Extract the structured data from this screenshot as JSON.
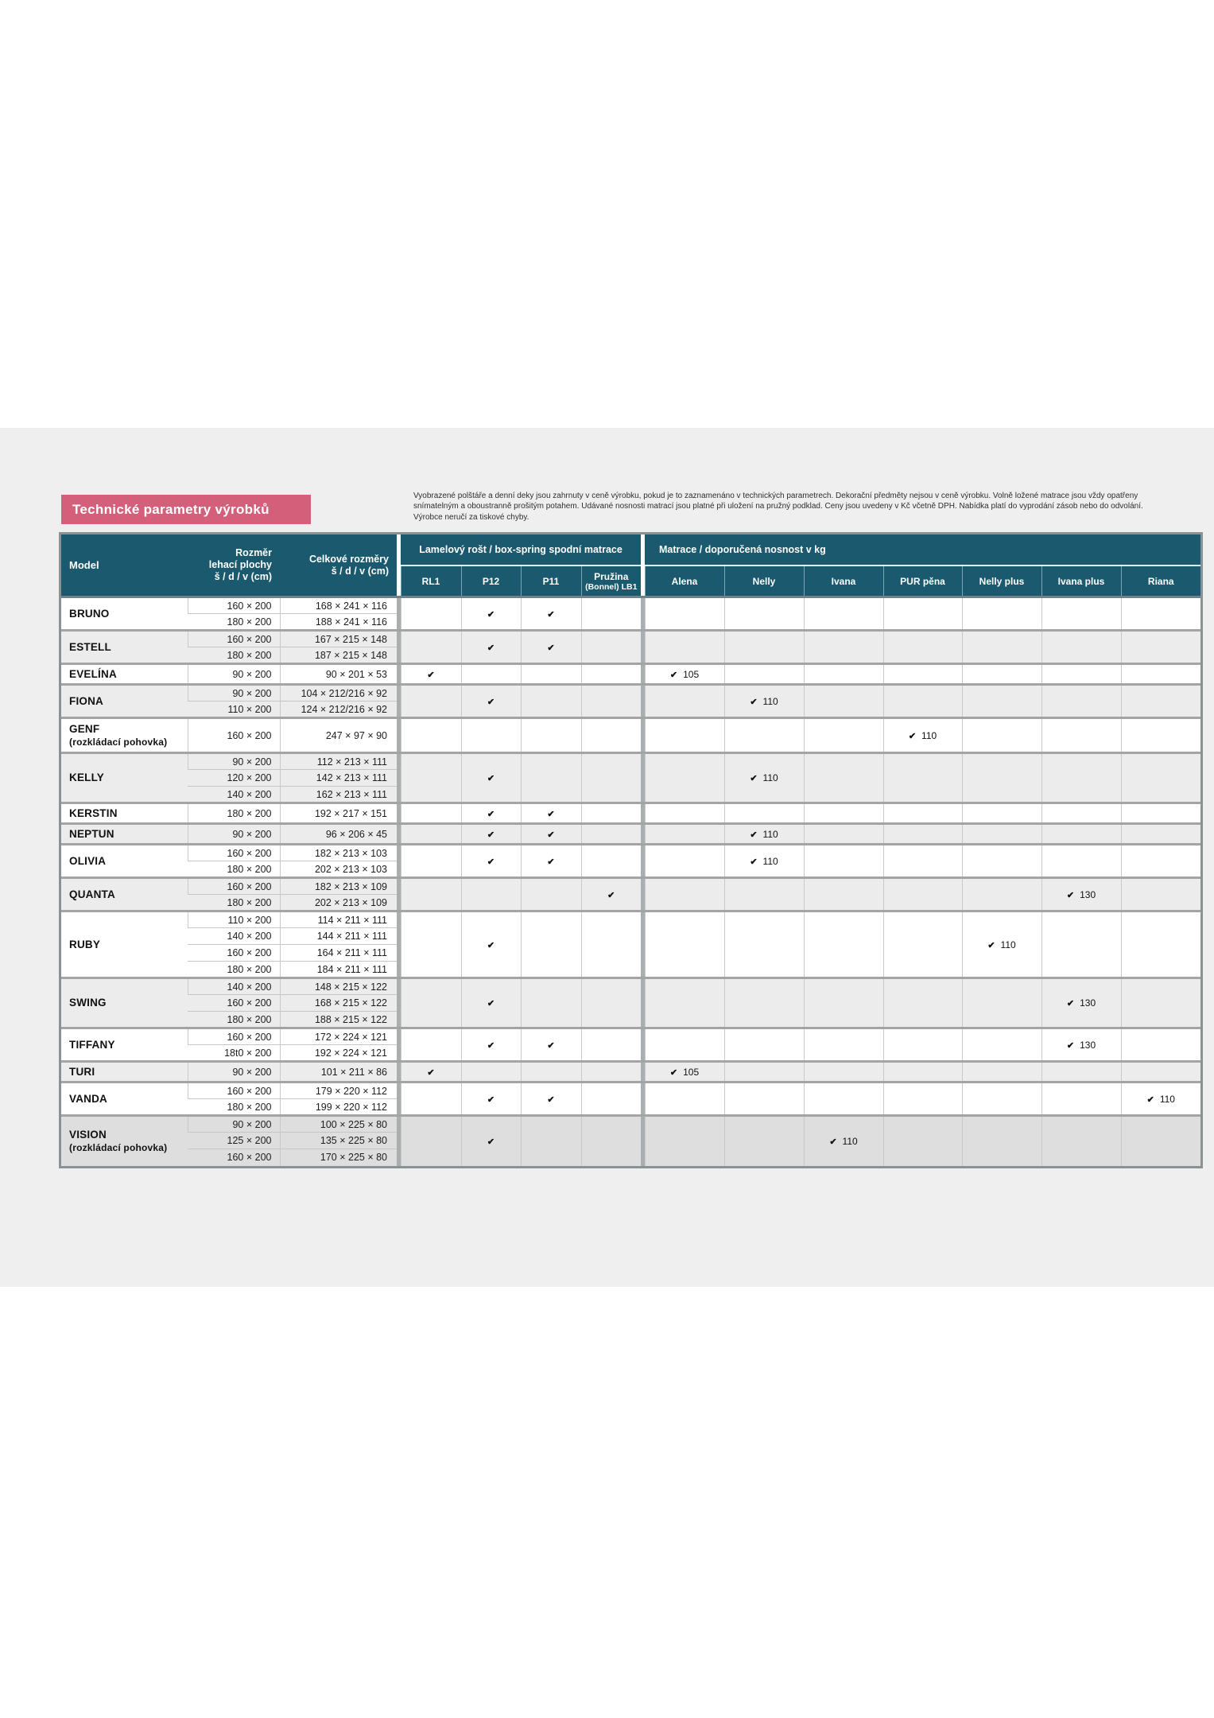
{
  "banner": {
    "title": "Technické parametry výrobků"
  },
  "disclaimer": {
    "text": "Vyobrazené polštáře a denní deky jsou zahrnuty v ceně výrobku, pokud je to zaznamenáno v technických parametrech. Dekorační předměty nejsou v ceně výrobku. Volně ložené matrace jsou vždy opatřeny snímatelným a oboustranně prošitým potahem. Udávané nosnosti matrací jsou platné při uložení na pružný podklad. Ceny jsou uvedeny v Kč včetně DPH. Nabídka platí do vyprodání zásob nebo do odvolání.",
    "footnote": "Výrobce neručí za tiskové chyby."
  },
  "colors": {
    "header_teal": "#1b5a6e",
    "banner_pink": "#d45f7a",
    "row_gray": "#ececec",
    "row_dark": "#dedede"
  },
  "table": {
    "check_glyph": "✔",
    "columns": {
      "model": "Model",
      "sleeping": "Rozměr\nlehací plochy\nš / d / v (cm)",
      "overall": "Celkové rozměry\nš / d / v (cm)",
      "group_base": "Lamelový rošt / box-spring spodní matrace",
      "base_cols": [
        "RL1",
        "P12",
        "P11",
        "Pružina\n(Bonnel) LB1"
      ],
      "group_mattress": "Matrace / doporučená nosnost v kg",
      "mattress_cols": [
        "Alena",
        "Nelly",
        "Ivana",
        "PUR pěna",
        "Nelly plus",
        "Ivana plus",
        "Riana"
      ]
    },
    "rows": [
      {
        "model": "BRUNO",
        "note": "",
        "shade": "light",
        "sizes": [
          [
            "160 × 200",
            "168 × 241 × 116"
          ],
          [
            "180 × 200",
            "188 × 241 × 116"
          ]
        ],
        "base": [
          0,
          1,
          1,
          0
        ],
        "mattress": null
      },
      {
        "model": "ESTELL",
        "note": "",
        "shade": "gray",
        "sizes": [
          [
            "160 × 200",
            "167 × 215 × 148"
          ],
          [
            "180 × 200",
            "187 × 215 × 148"
          ]
        ],
        "base": [
          0,
          1,
          1,
          0
        ],
        "mattress": null
      },
      {
        "model": "EVELÍNA",
        "note": "",
        "shade": "light",
        "sizes": [
          [
            "90 × 200",
            "90 × 201 × 53"
          ]
        ],
        "base": [
          1,
          0,
          0,
          0
        ],
        "mattress": {
          "col": 0,
          "value": "105"
        }
      },
      {
        "model": "FIONA",
        "note": "",
        "shade": "gray",
        "sizes": [
          [
            "90 × 200",
            "104 × 212/216 × 92"
          ],
          [
            "110 × 200",
            "124 × 212/216 × 92"
          ]
        ],
        "base": [
          0,
          1,
          0,
          0
        ],
        "mattress": {
          "col": 1,
          "value": "110"
        }
      },
      {
        "model": "GENF",
        "note": "(rozkládací pohovka)",
        "shade": "light",
        "tall": true,
        "sizes": [
          [
            "160 × 200",
            "247 × 97 × 90"
          ]
        ],
        "base": [
          0,
          0,
          0,
          0
        ],
        "mattress": {
          "col": 3,
          "value": "110"
        }
      },
      {
        "model": "KELLY",
        "note": "",
        "shade": "gray",
        "sizes": [
          [
            "90 × 200",
            "112 × 213 × 111"
          ],
          [
            "120 × 200",
            "142 × 213 × 111"
          ],
          [
            "140 × 200",
            "162 × 213 × 111"
          ]
        ],
        "base": [
          0,
          1,
          0,
          0
        ],
        "mattress": {
          "col": 1,
          "value": "110"
        }
      },
      {
        "model": "KERSTIN",
        "note": "",
        "shade": "light",
        "sizes": [
          [
            "180 × 200",
            "192 × 217 × 151"
          ]
        ],
        "base": [
          0,
          1,
          1,
          0
        ],
        "mattress": null
      },
      {
        "model": "NEPTUN",
        "note": "",
        "shade": "gray",
        "sizes": [
          [
            "90 × 200",
            "96 × 206 × 45"
          ]
        ],
        "base": [
          0,
          1,
          1,
          0
        ],
        "mattress": {
          "col": 1,
          "value": "110"
        }
      },
      {
        "model": "OLIVIA",
        "note": "",
        "shade": "light",
        "sizes": [
          [
            "160 × 200",
            "182 × 213 × 103"
          ],
          [
            "180 × 200",
            "202 × 213 × 103"
          ]
        ],
        "base": [
          0,
          1,
          1,
          0
        ],
        "mattress": {
          "col": 1,
          "value": "110"
        }
      },
      {
        "model": "QUANTA",
        "note": "",
        "shade": "gray",
        "sizes": [
          [
            "160 × 200",
            "182 × 213 × 109"
          ],
          [
            "180 × 200",
            "202 × 213 × 109"
          ]
        ],
        "base": [
          0,
          0,
          0,
          1
        ],
        "mattress": {
          "col": 5,
          "value": "130"
        }
      },
      {
        "model": "RUBY",
        "note": "",
        "shade": "light",
        "sizes": [
          [
            "110 × 200",
            "114 × 211 × 111"
          ],
          [
            "140 × 200",
            "144 × 211 × 111"
          ],
          [
            "160 × 200",
            "164 × 211 × 111"
          ],
          [
            "180 × 200",
            "184 × 211 × 111"
          ]
        ],
        "base": [
          0,
          1,
          0,
          0
        ],
        "mattress": {
          "col": 4,
          "value": "110"
        }
      },
      {
        "model": "SWING",
        "note": "",
        "shade": "gray",
        "sizes": [
          [
            "140 × 200",
            "148 × 215 × 122"
          ],
          [
            "160 × 200",
            "168 × 215 × 122"
          ],
          [
            "180 × 200",
            "188 × 215 × 122"
          ]
        ],
        "base": [
          0,
          1,
          0,
          0
        ],
        "mattress": {
          "col": 5,
          "value": "130"
        }
      },
      {
        "model": "TIFFANY",
        "note": "",
        "shade": "light",
        "sizes": [
          [
            "160 × 200",
            "172 × 224 × 121"
          ],
          [
            "18t0 × 200",
            "192 × 224 × 121"
          ]
        ],
        "base": [
          0,
          1,
          1,
          0
        ],
        "mattress": {
          "col": 5,
          "value": "130"
        }
      },
      {
        "model": "TURI",
        "note": "",
        "shade": "gray",
        "sizes": [
          [
            "90 × 200",
            "101 × 211 × 86"
          ]
        ],
        "base": [
          1,
          0,
          0,
          0
        ],
        "mattress": {
          "col": 0,
          "value": "105"
        }
      },
      {
        "model": "VANDA",
        "note": "",
        "shade": "light",
        "sizes": [
          [
            "160 × 200",
            "179 × 220 × 112"
          ],
          [
            "180 × 200",
            "199 × 220 × 112"
          ]
        ],
        "base": [
          0,
          1,
          1,
          0
        ],
        "mattress": {
          "col": 6,
          "value": "110"
        }
      },
      {
        "model": "VISION",
        "note": "(rozkládací pohovka)",
        "shade": "dark",
        "sizes": [
          [
            "90 × 200",
            "100 × 225 × 80"
          ],
          [
            "125 × 200",
            "135 × 225 × 80"
          ],
          [
            "160 × 200",
            "170 × 225 × 80"
          ]
        ],
        "base": [
          0,
          1,
          0,
          0
        ],
        "mattress": {
          "col": 2,
          "value": "110"
        }
      }
    ]
  }
}
